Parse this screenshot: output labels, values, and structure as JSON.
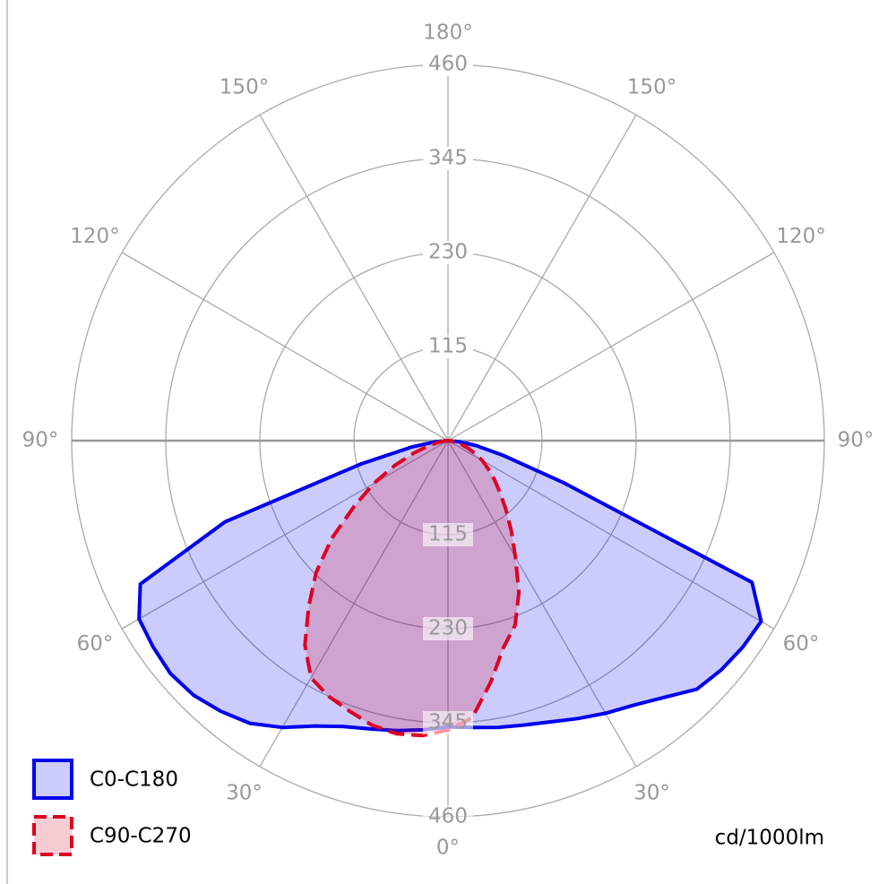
{
  "chart_data": {
    "type": "polar",
    "angles": [
      -90,
      -85,
      -80,
      -75,
      -70,
      -65,
      -60,
      -55,
      -50,
      -45,
      -40,
      -35,
      -30,
      -25,
      -20,
      -15,
      -10,
      -5,
      0,
      5,
      10,
      15,
      20,
      25,
      30,
      35,
      40,
      45,
      50,
      55,
      60,
      65,
      70,
      75,
      80,
      85,
      90
    ],
    "series": [
      {
        "name": "C0-C180",
        "color": "#0000ee",
        "dash": false,
        "values": [
          0,
          15,
          45,
          110,
          290,
          415,
          436,
          440,
          443,
          440,
          432,
          422,
          405,
          385,
          372,
          365,
          360,
          355,
          350,
          352,
          356,
          360,
          366,
          375,
          385,
          395,
          410,
          430,
          436,
          440,
          442,
          410,
          150,
          70,
          35,
          12,
          0
        ]
      },
      {
        "name": "C90-C270",
        "color": "#dd0022",
        "dash": true,
        "values": [
          0,
          5,
          12,
          25,
          45,
          72,
          105,
          140,
          185,
          228,
          265,
          305,
          335,
          345,
          352,
          360,
          364,
          362,
          354,
          340,
          300,
          262,
          240,
          205,
          165,
          135,
          110,
          90,
          74,
          60,
          48,
          36,
          25,
          16,
          9,
          4,
          0
        ]
      }
    ],
    "rlim": [
      0,
      460
    ],
    "rticks": [
      115,
      230,
      345,
      460
    ],
    "angle_ticks": [
      {
        "value": 0,
        "label": "0°"
      },
      {
        "value": 30,
        "label": "30°"
      },
      {
        "value": 60,
        "label": "60°"
      },
      {
        "value": 90,
        "label": "90°"
      },
      {
        "value": 120,
        "label": "120°"
      },
      {
        "value": 150,
        "label": "150°"
      },
      {
        "value": 180,
        "label": "180°"
      }
    ],
    "unit": "cd/1000lm"
  }
}
